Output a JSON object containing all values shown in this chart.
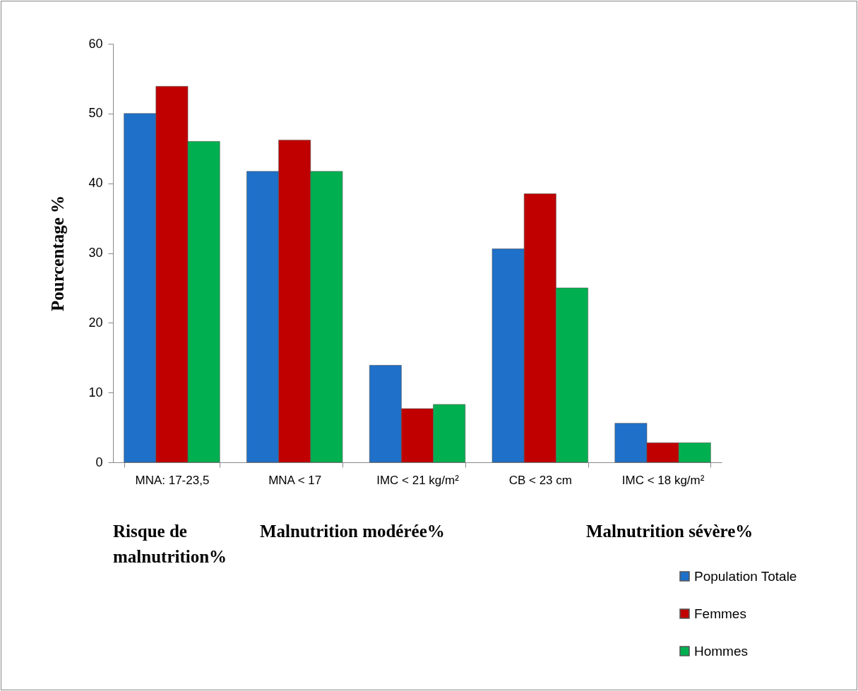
{
  "chart_data": {
    "type": "bar",
    "ylabel": "Pourcentage %",
    "categories": [
      "MNA: 17-23,5",
      "MNA < 17",
      "IMC < 21 kg/m²",
      "CB < 23 cm",
      "IMC < 18 kg/m²"
    ],
    "series": [
      {
        "name": "Population Totale",
        "color": "#1f70c8",
        "values": [
          50,
          41.7,
          13.9,
          30.6,
          5.6
        ]
      },
      {
        "name": "Femmes",
        "color": "#c00000",
        "values": [
          53.9,
          46.2,
          7.7,
          38.5,
          2.8
        ]
      },
      {
        "name": "Hommes",
        "color": "#00b050",
        "values": [
          46,
          41.7,
          8.3,
          25,
          2.8
        ]
      }
    ],
    "ylim": [
      0,
      60
    ],
    "yticks": [
      0,
      10,
      20,
      30,
      40,
      50,
      60
    ],
    "grid": false,
    "legend": "bottom right",
    "annotations": [
      "Risque de malnutrition%",
      "Malnutrition modérée%",
      "Malnutrition sévère%"
    ]
  }
}
